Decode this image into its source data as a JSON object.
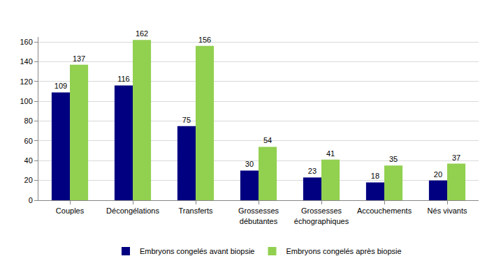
{
  "chart_data": {
    "type": "bar",
    "categories": [
      "Couples",
      "Décongélations",
      "Transferts",
      "Grossesses débutantes",
      "Grossesses échographiques",
      "Accouchements",
      "Nés vivants"
    ],
    "series": [
      {
        "name": "Embryons congelés avant biopsie",
        "color": "#000080",
        "values": [
          109,
          116,
          75,
          30,
          23,
          18,
          20
        ]
      },
      {
        "name": "Embryons congelés après biopsie",
        "color": "#92D050",
        "values": [
          137,
          162,
          156,
          54,
          41,
          35,
          37
        ]
      }
    ],
    "ylim": [
      0,
      165
    ],
    "yticks": [
      0,
      20,
      40,
      60,
      80,
      100,
      120,
      140,
      160
    ],
    "grid": true,
    "legend": "bottom",
    "data_labels": true
  }
}
